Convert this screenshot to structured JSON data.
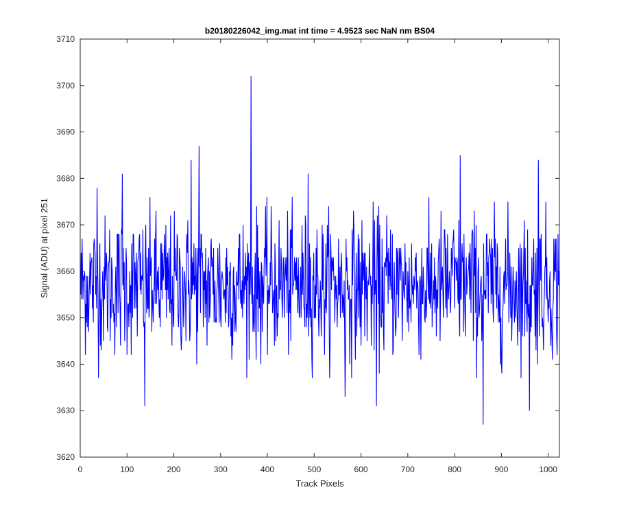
{
  "chart_data": {
    "type": "line",
    "title": "b20180226042_img.mat int time = 4.9523 sec  NaN nm BS04",
    "xlabel": "Track Pixels",
    "ylabel": "Signal (ADU) at pixel 251",
    "xlim": [
      0,
      1024
    ],
    "ylim": [
      3620,
      3710
    ],
    "xticks": [
      0,
      100,
      200,
      300,
      400,
      500,
      600,
      700,
      800,
      900,
      1000
    ],
    "yticks": [
      3620,
      3630,
      3640,
      3650,
      3660,
      3670,
      3680,
      3690,
      3700,
      3710
    ],
    "grid": false,
    "legend": "none",
    "series": [
      {
        "color": "#0000ff",
        "x_start": 1,
        "x_step": 1,
        "noise_mean": 3657,
        "noise_sd": 7.5,
        "peaks": [
          {
            "x": 36,
            "y": 3678
          },
          {
            "x": 90,
            "y": 3681
          },
          {
            "x": 138,
            "y": 3631
          },
          {
            "x": 237,
            "y": 3684
          },
          {
            "x": 254,
            "y": 3687
          },
          {
            "x": 365,
            "y": 3702
          },
          {
            "x": 487,
            "y": 3681
          },
          {
            "x": 566,
            "y": 3633
          },
          {
            "x": 633,
            "y": 3631
          },
          {
            "x": 812,
            "y": 3685
          },
          {
            "x": 861,
            "y": 3627
          },
          {
            "x": 960,
            "y": 3630
          },
          {
            "x": 979,
            "y": 3684
          }
        ]
      }
    ]
  }
}
